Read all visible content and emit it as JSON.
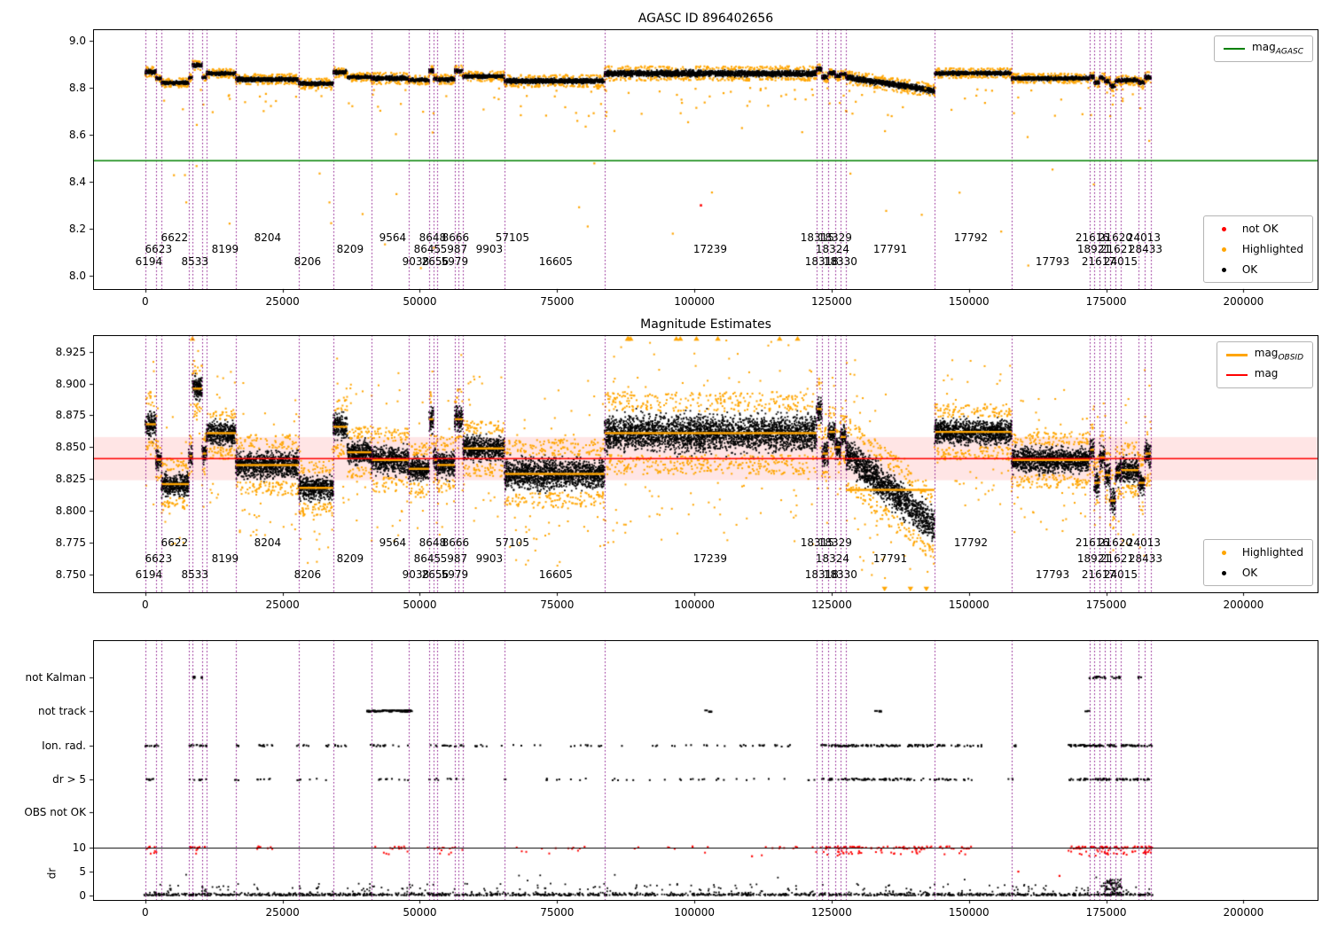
{
  "chart_data": [
    {
      "type": "scatter",
      "title": "AGASC ID 896402656",
      "xlim": [
        -9500,
        213500
      ],
      "ylim": [
        7.944,
        9.049
      ],
      "xticks": [
        0,
        25000,
        50000,
        75000,
        100000,
        125000,
        150000,
        175000,
        200000
      ],
      "yticks": [
        8.0,
        8.2,
        8.4,
        8.6,
        8.8,
        9.0
      ],
      "ytick_labels": [
        "8.0",
        "8.2",
        "8.4",
        "8.6",
        "8.8",
        "9.0"
      ],
      "hline": {
        "y": 8.49,
        "color": "#008000"
      },
      "legend_line": {
        "prefix": "mag",
        "sub": "AGASC",
        "color": "#008000"
      },
      "legend_points": [
        {
          "label": "not OK",
          "color": "#ff0000"
        },
        {
          "label": "Highlighted",
          "color": "#ffa500"
        },
        {
          "label": "OK",
          "color": "#000000"
        }
      ],
      "not_ok_points": [
        [
          101200,
          8.3
        ]
      ],
      "ok_color": "#000000",
      "highlighted_color": "#ffa500"
    },
    {
      "type": "scatter",
      "title": "Magnitude Estimates",
      "xlim": [
        -9500,
        213500
      ],
      "ylim": [
        8.736,
        8.938
      ],
      "xticks": [
        0,
        25000,
        50000,
        75000,
        100000,
        125000,
        150000,
        175000,
        200000
      ],
      "yticks": [
        8.75,
        8.775,
        8.8,
        8.825,
        8.85,
        8.875,
        8.9,
        8.925
      ],
      "ytick_labels": [
        "8.750",
        "8.775",
        "8.800",
        "8.825",
        "8.850",
        "8.875",
        "8.900",
        "8.925"
      ],
      "mag_line": {
        "y": 8.841,
        "color": "#ff0000",
        "band": [
          8.824,
          8.858
        ],
        "band_color": "rgba(255,0,0,0.10)"
      },
      "legend_lines": [
        {
          "prefix": "mag",
          "sub": "OBSID",
          "color": "#ffa500"
        },
        {
          "prefix": "mag",
          "sub": "",
          "color": "#ff0000"
        }
      ],
      "legend_points": [
        {
          "label": "Highlighted",
          "color": "#ffa500"
        },
        {
          "label": "OK",
          "color": "#000000"
        }
      ],
      "top_clip_triangles": [
        118800
      ],
      "ok_color": "#000000",
      "highlighted_color": "#ffa500"
    },
    {
      "type": "scatter",
      "title": "",
      "xlim": [
        -9500,
        213500
      ],
      "xticks": [
        0,
        25000,
        50000,
        75000,
        100000,
        125000,
        150000,
        175000,
        200000
      ],
      "ylabel": "dr",
      "rows": [
        "not Kalman",
        "not track",
        "Ion. rad.",
        "dr > 5",
        "OBS not OK"
      ],
      "dr_ticks": [
        10,
        5,
        0
      ],
      "dr_cap": 10,
      "flag_clusters": [
        [
          [
            8600,
            10400,
            12
          ],
          [
            171800,
            177700,
            26
          ],
          [
            180700,
            181400,
            5
          ]
        ],
        [
          [
            40500,
            48500,
            46
          ],
          [
            101900,
            103000,
            4
          ],
          [
            133000,
            134200,
            3
          ],
          [
            171000,
            171800,
            2
          ]
        ],
        [
          [
            0,
            2500,
            12
          ],
          [
            7900,
            11200,
            14
          ],
          [
            16300,
            17000,
            4
          ],
          [
            19800,
            23200,
            10
          ],
          [
            27500,
            33500,
            10
          ],
          [
            34200,
            37000,
            8
          ],
          [
            41000,
            48200,
            16
          ],
          [
            51400,
            58000,
            18
          ],
          [
            60000,
            65500,
            8
          ],
          [
            66000,
            83600,
            14
          ],
          [
            84000,
            122200,
            30
          ],
          [
            122900,
            152600,
            130
          ],
          [
            157400,
            158600,
            4
          ],
          [
            168000,
            183500,
            95
          ]
        ],
        [
          [
            0,
            2500,
            8
          ],
          [
            7900,
            11200,
            9
          ],
          [
            16300,
            17000,
            3
          ],
          [
            20000,
            23200,
            6
          ],
          [
            27500,
            33500,
            6
          ],
          [
            41000,
            48200,
            10
          ],
          [
            51400,
            58000,
            11
          ],
          [
            65000,
            83600,
            10
          ],
          [
            84000,
            122200,
            26
          ],
          [
            122900,
            150500,
            95
          ],
          [
            156900,
            158200,
            3
          ],
          [
            168000,
            183500,
            75
          ]
        ],
        []
      ],
      "dr_red_clusters": [
        [
          0,
          2500,
          10
        ],
        [
          7900,
          11200,
          12
        ],
        [
          20000,
          23200,
          8
        ],
        [
          41000,
          48200,
          14
        ],
        [
          51400,
          58000,
          14
        ],
        [
          65000,
          83600,
          12
        ],
        [
          84000,
          122200,
          20
        ],
        [
          122900,
          150500,
          110
        ],
        [
          168000,
          183500,
          90
        ]
      ],
      "dr_red_singles": [
        [
          159000,
          5.0
        ],
        [
          166500,
          4.1
        ],
        [
          110500,
          8.2
        ]
      ],
      "dr_black": {
        "count": 1500,
        "typical_max": 2.5,
        "bump": [
          174500,
          177800,
          80
        ]
      }
    }
  ],
  "shared_data": {
    "vline_color": "#800080",
    "vlines_x": [
      0,
      1940,
      2910,
      7915,
      8560,
      10340,
      11140,
      16470,
      27940,
      34240,
      41180,
      47960,
      51680,
      52480,
      53130,
      56360,
      57000,
      57810,
      65400,
      83650,
      122250,
      123220,
      124350,
      125640,
      126610,
      127580,
      143730,
      157780,
      171990,
      172800,
      173770,
      174740,
      175710,
      176680,
      177650,
      180880,
      182010,
      183140
    ],
    "segments": [
      [
        0,
        1940,
        8.868,
        0.015
      ],
      [
        1940,
        2910,
        8.84,
        0.01
      ],
      [
        2910,
        7915,
        8.821,
        0.012
      ],
      [
        7915,
        8560,
        8.843,
        0.01
      ],
      [
        8560,
        10340,
        8.896,
        0.013
      ],
      [
        10340,
        11140,
        8.845,
        0.01
      ],
      [
        11140,
        16470,
        8.861,
        0.012
      ],
      [
        16470,
        27940,
        8.836,
        0.014
      ],
      [
        27940,
        34240,
        8.818,
        0.013
      ],
      [
        34240,
        36800,
        8.866,
        0.014
      ],
      [
        36800,
        41180,
        8.846,
        0.012
      ],
      [
        41180,
        47960,
        8.84,
        0.015
      ],
      [
        47960,
        51680,
        8.833,
        0.012
      ],
      [
        51680,
        52480,
        8.872,
        0.014
      ],
      [
        52480,
        53130,
        8.84,
        0.012
      ],
      [
        53130,
        56360,
        8.836,
        0.013
      ],
      [
        56360,
        57810,
        8.872,
        0.014
      ],
      [
        57810,
        65400,
        8.849,
        0.013
      ],
      [
        65400,
        83650,
        8.829,
        0.016
      ],
      [
        83650,
        122250,
        8.861,
        0.019
      ],
      [
        122250,
        123220,
        8.88,
        0.014
      ],
      [
        123220,
        124350,
        8.845,
        0.013
      ],
      [
        124350,
        125640,
        8.862,
        0.012
      ],
      [
        125640,
        126610,
        8.85,
        0.012
      ],
      [
        126610,
        127580,
        8.858,
        0.012
      ],
      [
        127580,
        143730,
        8.845,
        0.018,
        8.788
      ],
      [
        143730,
        157780,
        8.862,
        0.013
      ],
      [
        157780,
        171990,
        8.84,
        0.013
      ],
      [
        171990,
        172800,
        8.848,
        0.012
      ],
      [
        172800,
        173770,
        8.822,
        0.013
      ],
      [
        173770,
        174740,
        8.842,
        0.012
      ],
      [
        174740,
        175710,
        8.828,
        0.013
      ],
      [
        175710,
        176680,
        8.808,
        0.014
      ],
      [
        176680,
        177650,
        8.83,
        0.012
      ],
      [
        177650,
        180880,
        8.832,
        0.013
      ],
      [
        180880,
        182010,
        8.822,
        0.013
      ],
      [
        182010,
        183140,
        8.845,
        0.015
      ]
    ],
    "obsid_labels": {
      "row0": [
        {
          "text": "6622",
          "x": 5330
        },
        {
          "text": "8204",
          "x": 22290
        },
        {
          "text": "9564",
          "x": 45060
        },
        {
          "text": "8648",
          "x": 52330
        },
        {
          "text": "8666",
          "x": 56530
        },
        {
          "text": "57105",
          "x": 66860
        },
        {
          "text": "18315",
          "x": 122400
        },
        {
          "text": "18329",
          "x": 125630
        },
        {
          "text": "17792",
          "x": 150360
        },
        {
          "text": "21616",
          "x": 172480
        },
        {
          "text": "21620",
          "x": 176680
        },
        {
          "text": "24013",
          "x": 181850
        }
      ],
      "row1": [
        {
          "text": "6623",
          "x": 2420
        },
        {
          "text": "8199",
          "x": 14540
        },
        {
          "text": "8209",
          "x": 37310
        },
        {
          "text": "8645",
          "x": 51360
        },
        {
          "text": "5987",
          "x": 56200
        },
        {
          "text": "9903",
          "x": 62660
        },
        {
          "text": "17239",
          "x": 102880
        },
        {
          "text": "18324",
          "x": 125170
        },
        {
          "text": "17791",
          "x": 135670
        },
        {
          "text": "18921",
          "x": 172800
        },
        {
          "text": "21621",
          "x": 177000
        },
        {
          "text": "28433",
          "x": 182170
        }
      ],
      "row2": [
        {
          "text": "6194",
          "x": 650
        },
        {
          "text": "8533",
          "x": 9040
        },
        {
          "text": "8206",
          "x": 29560
        },
        {
          "text": "9038",
          "x": 49260
        },
        {
          "text": "2656",
          "x": 52810
        },
        {
          "text": "5979",
          "x": 56360
        },
        {
          "text": "16605",
          "x": 74770
        },
        {
          "text": "18318",
          "x": 123210
        },
        {
          "text": "18330",
          "x": 126600
        },
        {
          "text": "17793",
          "x": 165220
        },
        {
          "text": "21617",
          "x": 173610
        },
        {
          "text": "24015",
          "x": 177650
        }
      ]
    }
  }
}
